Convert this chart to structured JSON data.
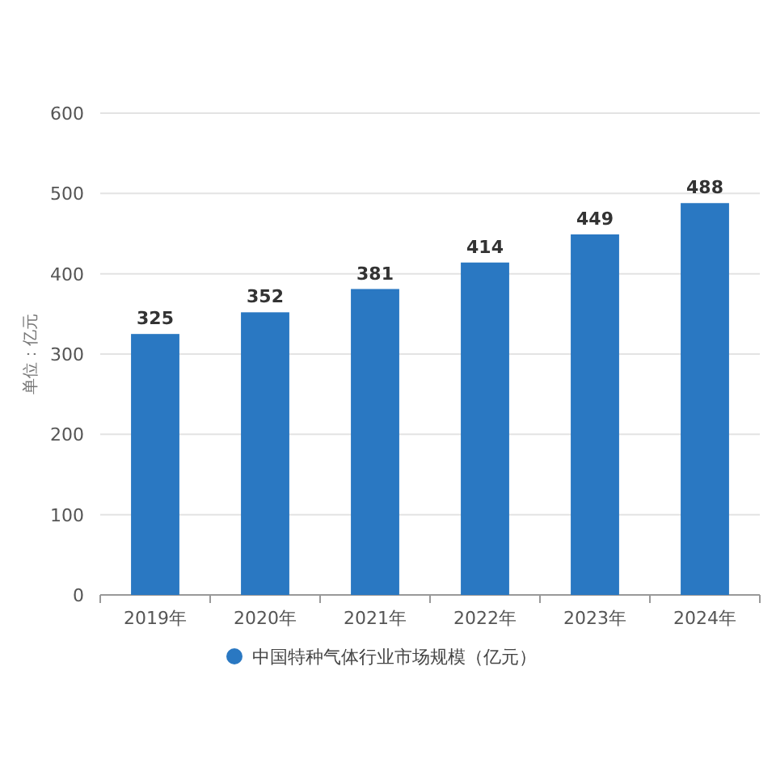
{
  "chart_data": {
    "type": "bar",
    "ylabel": "单位：亿元",
    "categories": [
      "2019年",
      "2020年",
      "2021年",
      "2022年",
      "2023年",
      "2024年"
    ],
    "series": [
      {
        "name": "中国特种气体行业市场规模（亿元）",
        "color": "#2a78c2",
        "values": [
          325,
          352,
          381,
          414,
          449,
          488
        ]
      }
    ],
    "ylim": [
      0,
      600
    ],
    "yticks": [
      0,
      100,
      200,
      300,
      400,
      500,
      600
    ],
    "grid": "y",
    "data_labels": true,
    "legend": "bottom"
  }
}
